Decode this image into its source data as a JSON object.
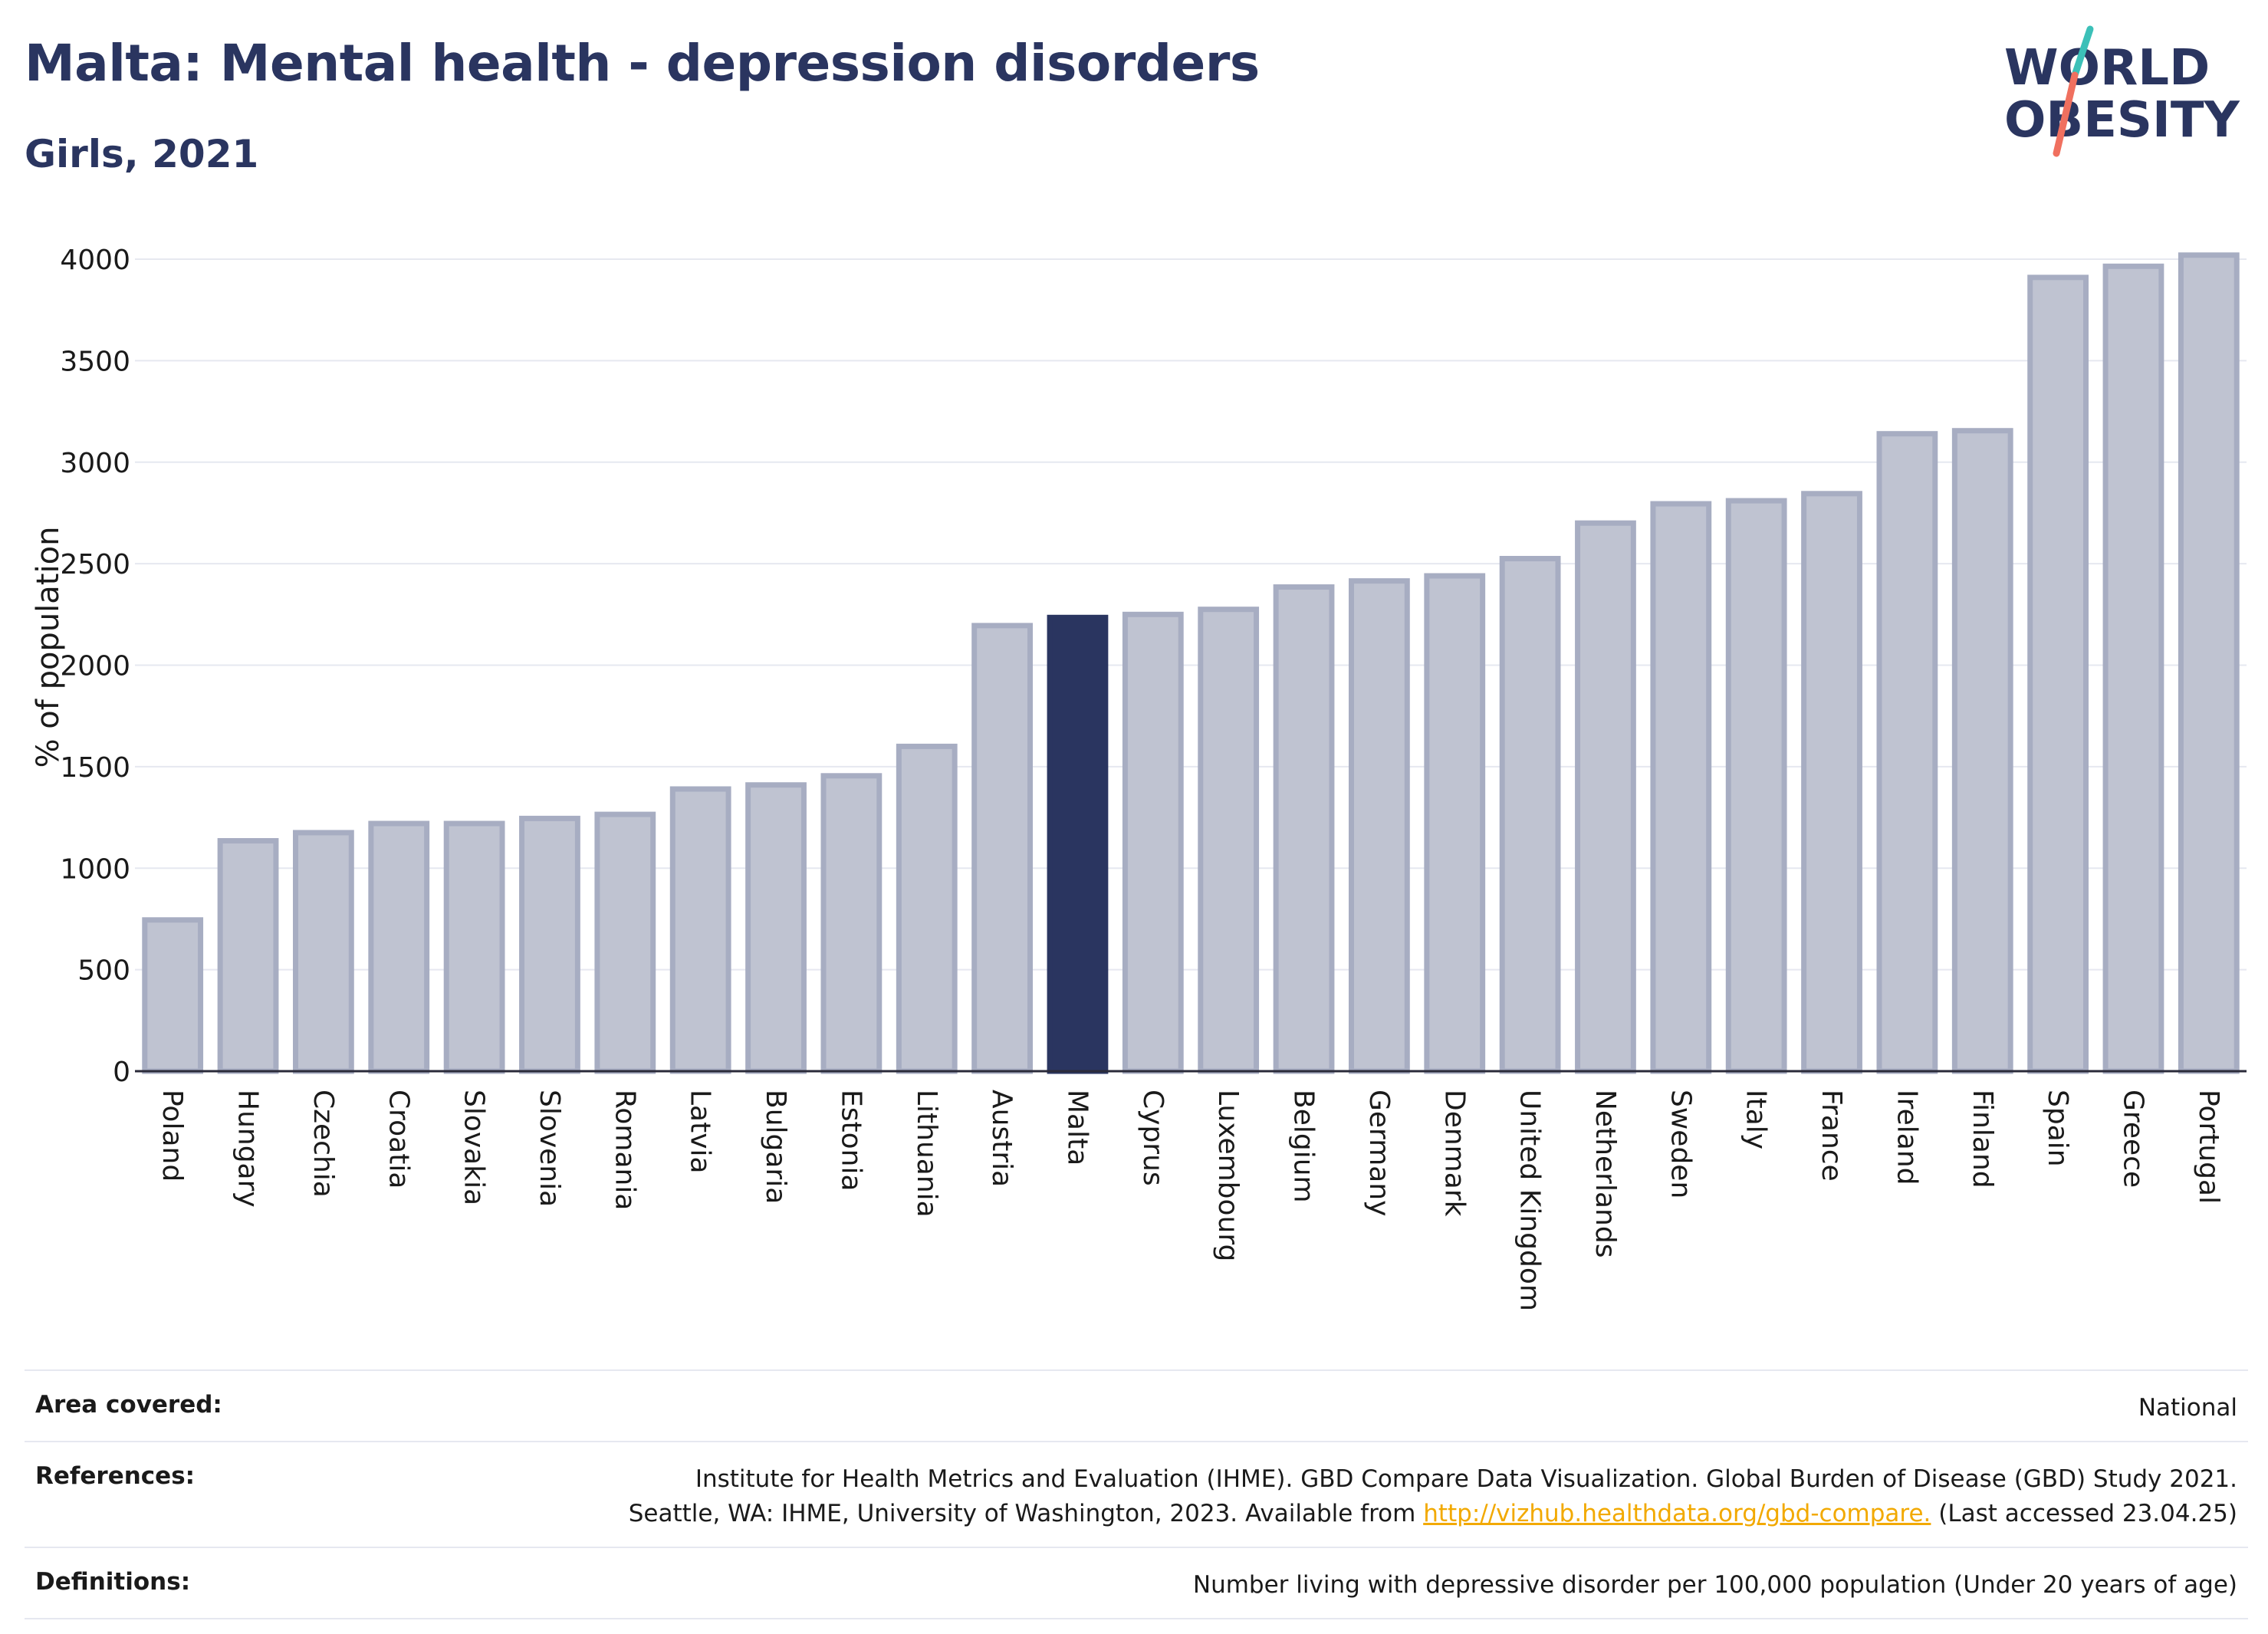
{
  "title": "Malta: Mental health - depression disorders",
  "subtitle": "Girls, 2021",
  "logo": {
    "line1": "WORLD",
    "line2": "OBESITY",
    "icon": "world-obesity-logo"
  },
  "colors": {
    "highlight": "#2a3560",
    "bar": "#bfc3d1",
    "bar_stroke": "#a7adc2",
    "gridline": "#e6e8f0",
    "link": "#f2a900",
    "logo_teal": "#3cc0b8",
    "logo_coral": "#f0705f"
  },
  "chart_data": {
    "type": "bar",
    "ylabel": "% of population",
    "ylim": [
      0,
      4100
    ],
    "yticks": [
      0,
      500,
      1000,
      1500,
      2000,
      2500,
      3000,
      3500,
      4000
    ],
    "grid": true,
    "highlight": "Malta",
    "categories": [
      "Poland",
      "Hungary",
      "Czechia",
      "Croatia",
      "Slovakia",
      "Slovenia",
      "Romania",
      "Latvia",
      "Bulgaria",
      "Estonia",
      "Lithuania",
      "Austria",
      "Malta",
      "Cyprus",
      "Luxembourg",
      "Belgium",
      "Germany",
      "Denmark",
      "United Kingdom",
      "Netherlands",
      "Sweden",
      "Italy",
      "France",
      "Ireland",
      "Finland",
      "Spain",
      "Greece",
      "Portugal"
    ],
    "values": [
      745,
      1135,
      1175,
      1220,
      1220,
      1245,
      1265,
      1390,
      1410,
      1455,
      1600,
      2195,
      2235,
      2250,
      2275,
      2385,
      2415,
      2440,
      2525,
      2700,
      2795,
      2810,
      2845,
      3140,
      3155,
      3910,
      3965,
      4020
    ]
  },
  "meta": {
    "area_label": "Area covered:",
    "area_value": "National",
    "references_label": "References:",
    "references_line1": "Institute for Health Metrics and Evaluation (IHME). GBD Compare Data Visualization. Global Burden of Disease (GBD) Study 2021.",
    "references_line2_pre": "Seattle, WA: IHME, University of Washington, 2023. Available from",
    "references_link": "http://vizhub.healthdata.org/gbd-compare.",
    "references_line2_post": "(Last accessed 23.04.25)",
    "definitions_label": "Definitions:",
    "definitions_value": "Number living with depressive disorder per 100,000 population (Under 20 years of age)"
  }
}
